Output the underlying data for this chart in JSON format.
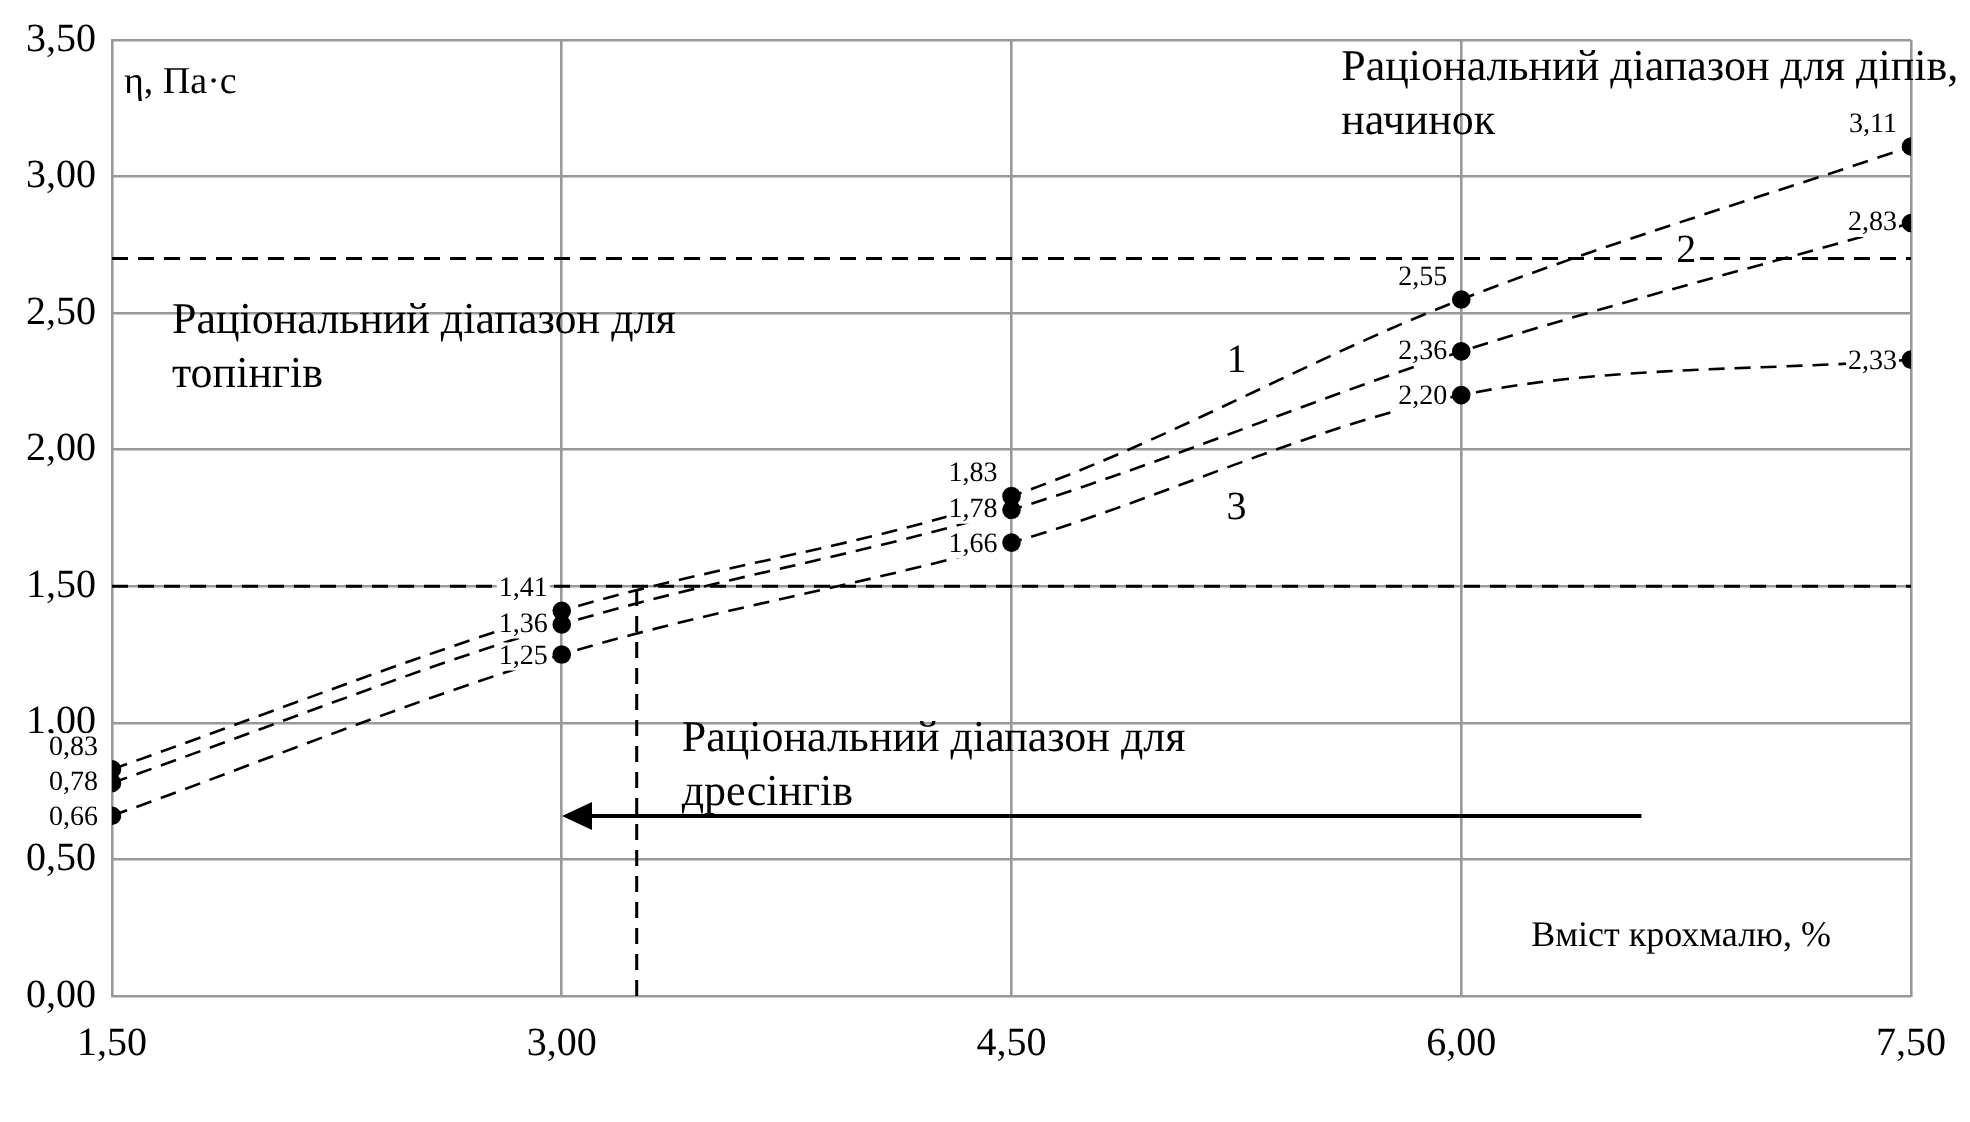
{
  "chart_data": {
    "type": "line",
    "xlabel": "Вміст крохмалю, %",
    "ylabel": "η, Па·с",
    "x": [
      1.5,
      3,
      4.5,
      6,
      7.5
    ],
    "series": [
      {
        "name": "1",
        "color": "#000000",
        "values": [
          0.83,
          1.41,
          1.83,
          2.55,
          3.11
        ],
        "value_labels": [
          "0,83",
          "1,41",
          "1,83",
          "2,55",
          "3,11"
        ]
      },
      {
        "name": "2",
        "color": "#000000",
        "values": [
          0.78,
          1.36,
          1.78,
          2.36,
          2.83
        ],
        "value_labels": [
          "0,78",
          "1,36",
          "1,78",
          "2,36",
          "2,83"
        ]
      },
      {
        "name": "3",
        "color": "#000000",
        "values": [
          0.66,
          1.25,
          1.66,
          2.2,
          2.33
        ],
        "value_labels": [
          "0,66",
          "1,25",
          "1,66",
          "2,20",
          "2,33"
        ]
      }
    ],
    "xlim": [
      1.5,
      7.5
    ],
    "ylim": [
      0,
      3.5
    ],
    "xticks": [
      {
        "value": 1.5,
        "label": "1,50"
      },
      {
        "value": 3,
        "label": "3,00"
      },
      {
        "value": 4.5,
        "label": "4,50"
      },
      {
        "value": 6,
        "label": "6,00"
      },
      {
        "value": 7.5,
        "label": "7,50"
      }
    ],
    "yticks": [
      {
        "value": 0,
        "label": "0,00"
      },
      {
        "value": 0.5,
        "label": "0,50"
      },
      {
        "value": 1,
        "label": "1,00"
      },
      {
        "value": 1.5,
        "label": "1,50"
      },
      {
        "value": 2,
        "label": "2,00"
      },
      {
        "value": 2.5,
        "label": "2,50"
      },
      {
        "value": 3,
        "label": "3,00"
      },
      {
        "value": 3.5,
        "label": "3,50"
      }
    ],
    "ref_lines": [
      {
        "axis": "y",
        "value": 2.7,
        "line_style": "dashed",
        "color": "#000000"
      },
      {
        "axis": "y",
        "value": 1.5,
        "line_style": "dashed",
        "color": "#000000"
      },
      {
        "axis": "x",
        "value": 3.25,
        "line_style": "dashed",
        "color": "#000000"
      }
    ],
    "annotations": [
      "Раціональний діапазон для діпів, начинок",
      "Раціональний діапазон для топінгів",
      "Раціональний діапазон для дресінгів"
    ],
    "grid": true,
    "legend": false,
    "marker": "circle",
    "line_style": "dashed"
  }
}
